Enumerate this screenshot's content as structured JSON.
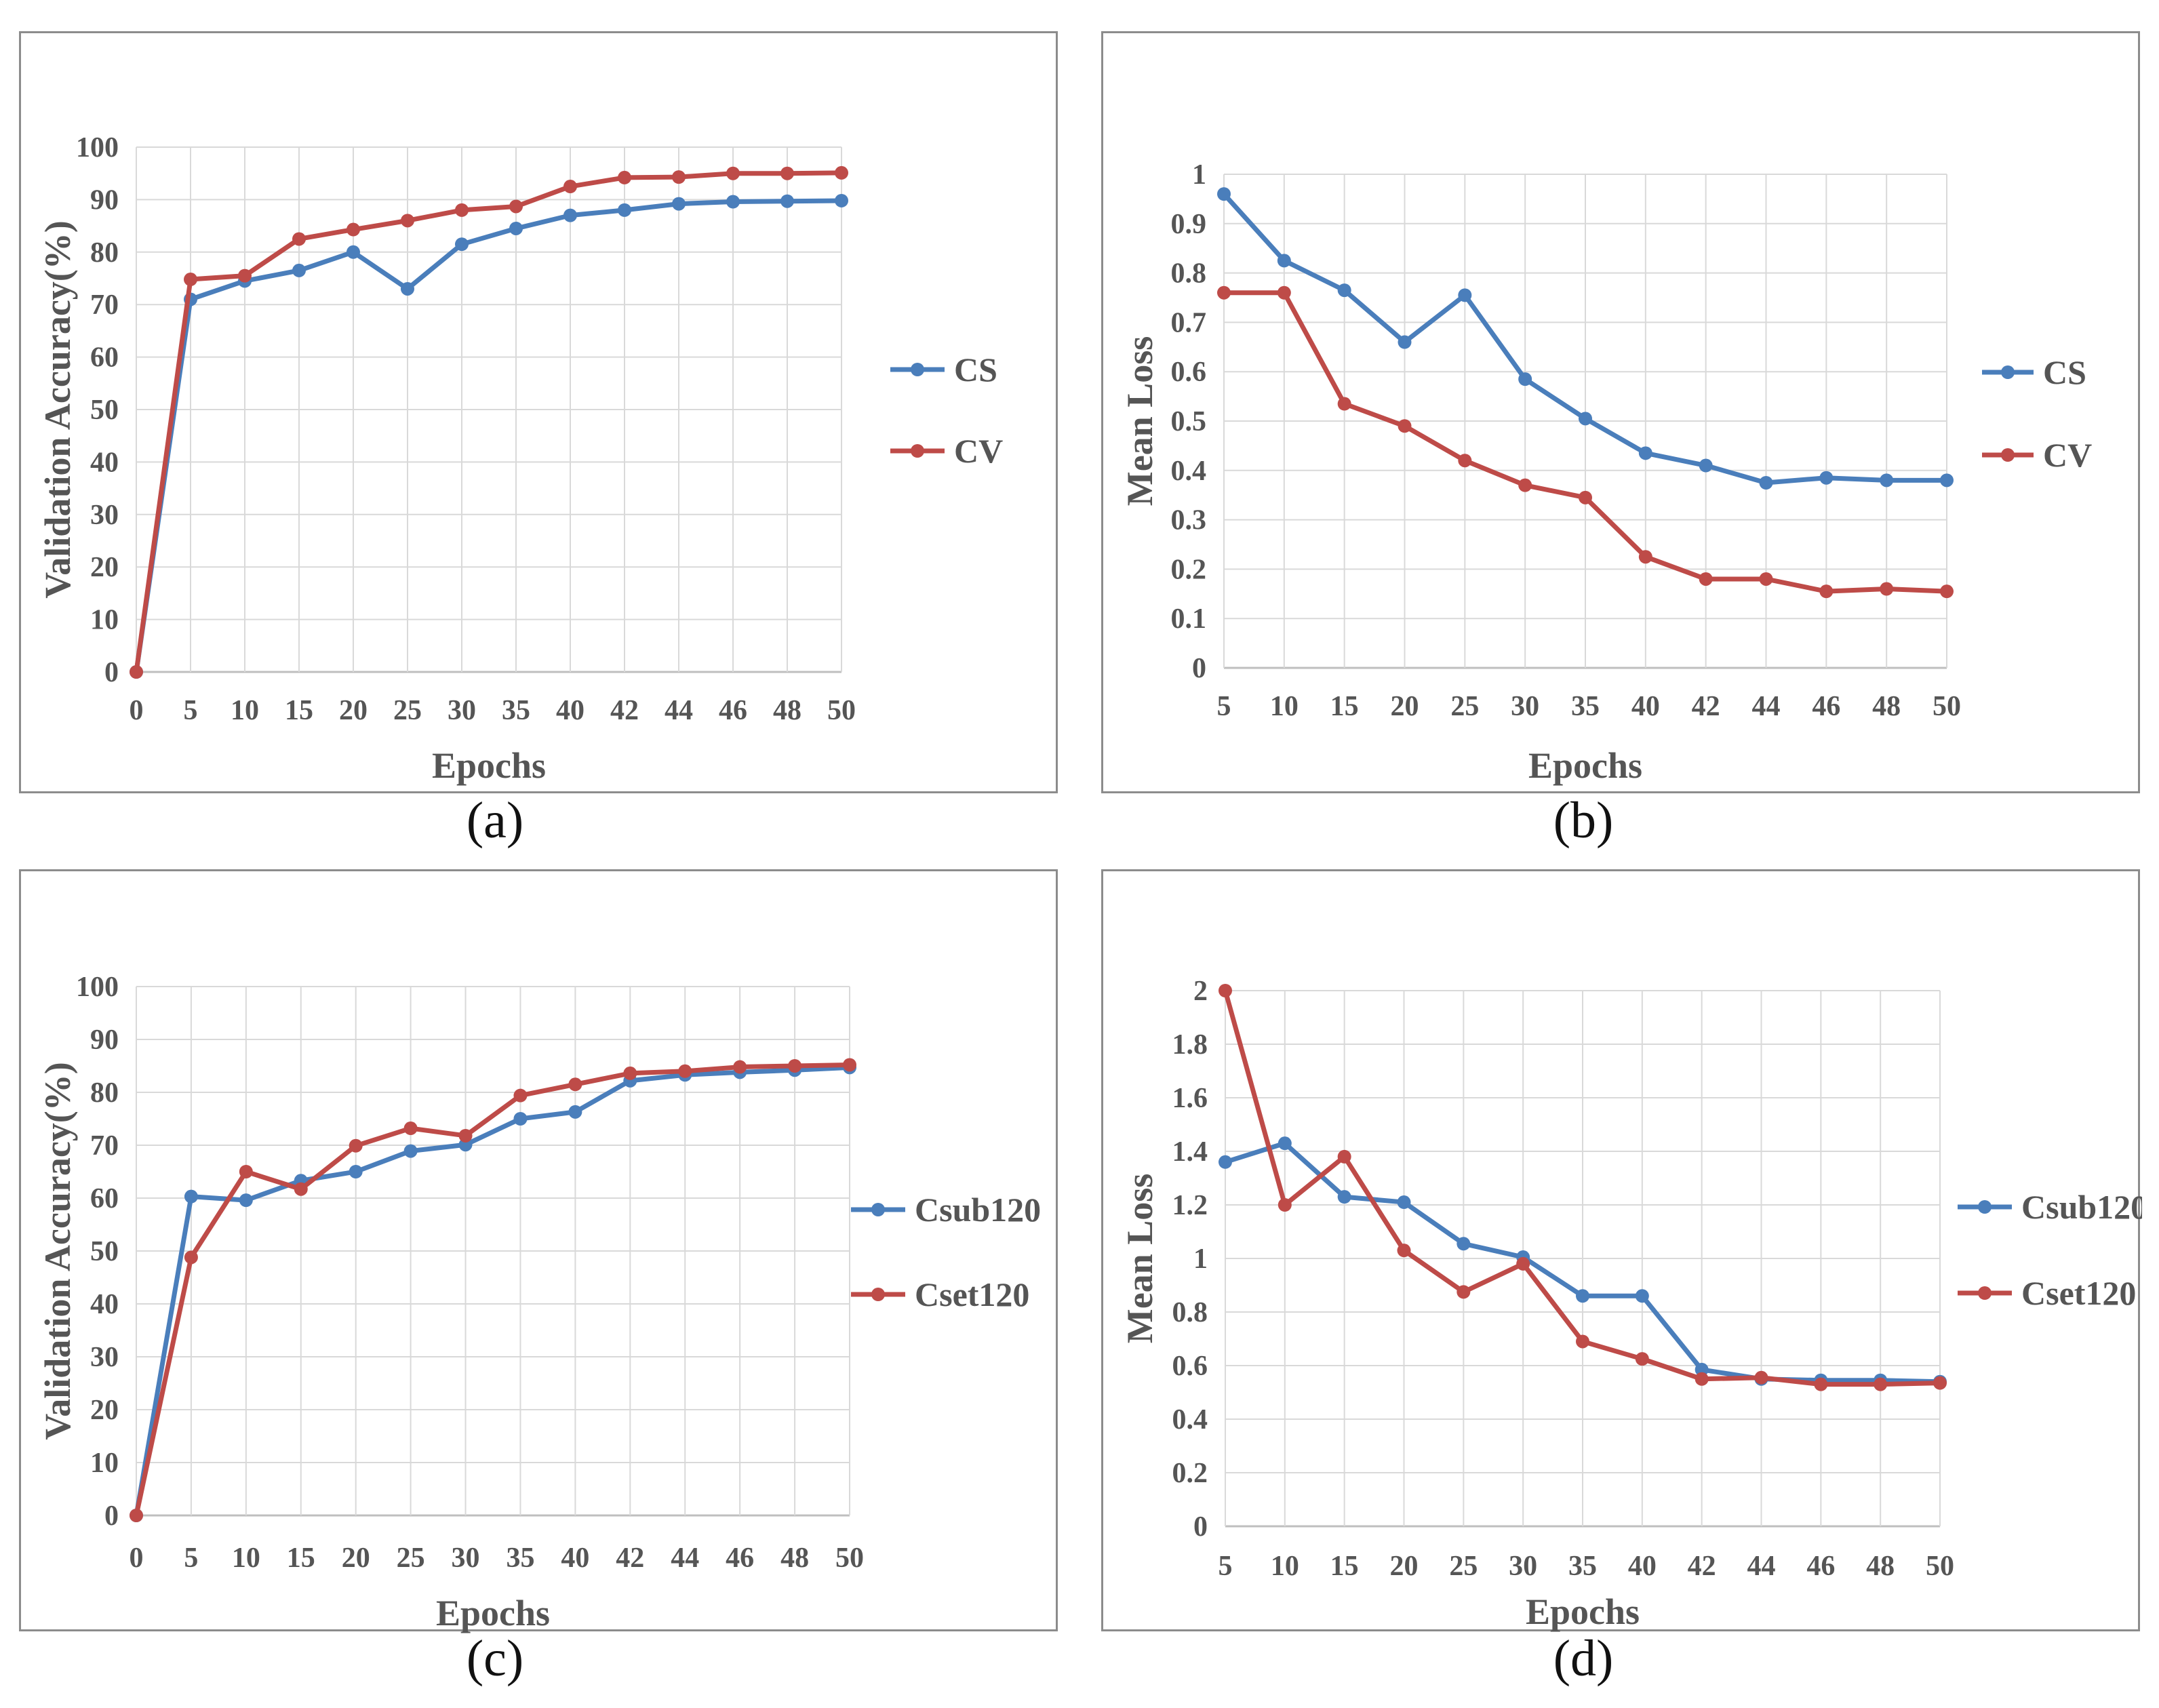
{
  "chart_data": [
    {
      "type": "line",
      "panel": "(a)",
      "categories": [
        "0",
        "5",
        "10",
        "15",
        "20",
        "25",
        "30",
        "35",
        "40",
        "42",
        "44",
        "46",
        "48",
        "50"
      ],
      "series": [
        {
          "name": "CS",
          "color": "#4a7ebb",
          "values": [
            0,
            71,
            74.5,
            76.5,
            80,
            73,
            81.5,
            84.5,
            87,
            88,
            89.2,
            89.6,
            89.7,
            89.8
          ]
        },
        {
          "name": "CV",
          "color": "#be4b48",
          "values": [
            0,
            74.8,
            75.5,
            82.5,
            84.3,
            86,
            88,
            88.7,
            92.5,
            94.2,
            94.3,
            95,
            95,
            95.1
          ]
        }
      ],
      "title": "",
      "xlabel": "Epochs",
      "ylabel": "Validation Accuracy(%)",
      "ylim": [
        0,
        100
      ],
      "yticks": [
        "0",
        "10",
        "20",
        "30",
        "40",
        "50",
        "60",
        "70",
        "80",
        "90",
        "100"
      ],
      "grid": true,
      "legend": "right"
    },
    {
      "type": "line",
      "panel": "(b)",
      "categories": [
        "5",
        "10",
        "15",
        "20",
        "25",
        "30",
        "35",
        "40",
        "42",
        "44",
        "46",
        "48",
        "50"
      ],
      "series": [
        {
          "name": "CS",
          "color": "#4a7ebb",
          "values": [
            0.96,
            0.825,
            0.765,
            0.66,
            0.755,
            0.585,
            0.505,
            0.435,
            0.41,
            0.375,
            0.385,
            0.38,
            0.38
          ]
        },
        {
          "name": "CV",
          "color": "#be4b48",
          "values": [
            0.76,
            0.76,
            0.535,
            0.49,
            0.42,
            0.37,
            0.345,
            0.225,
            0.18,
            0.18,
            0.155,
            0.16,
            0.155
          ]
        }
      ],
      "title": "",
      "xlabel": "Epochs",
      "ylabel": "Mean Loss",
      "ylim": [
        0,
        1
      ],
      "yticks": [
        "0",
        "0.1",
        "0.2",
        "0.3",
        "0.4",
        "0.5",
        "0.6",
        "0.7",
        "0.8",
        "0.9",
        "1"
      ],
      "grid": true,
      "legend": "right"
    },
    {
      "type": "line",
      "panel": "(c)",
      "categories": [
        "0",
        "5",
        "10",
        "15",
        "20",
        "25",
        "30",
        "35",
        "40",
        "42",
        "44",
        "46",
        "48",
        "50"
      ],
      "series": [
        {
          "name": "Csub120",
          "color": "#4a7ebb",
          "values": [
            0,
            60.3,
            59.6,
            63.3,
            65,
            68.9,
            70.1,
            75,
            76.3,
            82.2,
            83.3,
            83.8,
            84.2,
            84.7
          ]
        },
        {
          "name": "Cset120",
          "color": "#be4b48",
          "values": [
            0,
            48.8,
            65,
            61.7,
            69.9,
            73.2,
            71.8,
            79.4,
            81.5,
            83.6,
            84,
            84.8,
            85,
            85.2
          ]
        }
      ],
      "title": "",
      "xlabel": "Epochs",
      "ylabel": "Validation Accuracy(%)",
      "ylim": [
        0,
        100
      ],
      "yticks": [
        "0",
        "10",
        "20",
        "30",
        "40",
        "50",
        "60",
        "70",
        "80",
        "90",
        "100"
      ],
      "grid": true,
      "legend": "right"
    },
    {
      "type": "line",
      "panel": "(d)",
      "categories": [
        "5",
        "10",
        "15",
        "20",
        "25",
        "30",
        "35",
        "40",
        "42",
        "44",
        "46",
        "48",
        "50"
      ],
      "series": [
        {
          "name": "Csub120",
          "color": "#4a7ebb",
          "values": [
            1.36,
            1.43,
            1.23,
            1.21,
            1.055,
            1.005,
            0.86,
            0.86,
            0.585,
            0.55,
            0.545,
            0.545,
            0.54
          ]
        },
        {
          "name": "Cset120",
          "color": "#be4b48",
          "values": [
            2,
            1.2,
            1.38,
            1.03,
            0.875,
            0.98,
            0.69,
            0.625,
            0.55,
            0.555,
            0.53,
            0.53,
            0.535
          ]
        }
      ],
      "title": "",
      "xlabel": "Epochs",
      "ylabel": "Mean Loss",
      "ylim": [
        0,
        2
      ],
      "yticks": [
        "0",
        "0.2",
        "0.4",
        "0.6",
        "0.8",
        "1",
        "1.2",
        "1.4",
        "1.6",
        "1.8",
        "2"
      ],
      "grid": true,
      "legend": "right"
    }
  ],
  "captions": [
    "(a)",
    "(b)",
    "(c)",
    "(d)"
  ]
}
